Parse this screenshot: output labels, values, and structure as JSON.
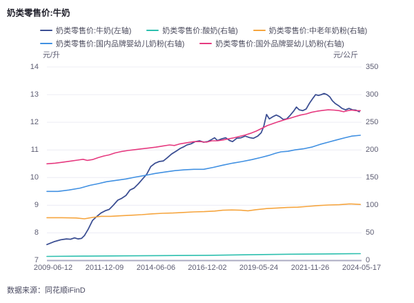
{
  "page": {
    "title": "奶类零售价:牛奶",
    "source": "数据来源：同花顺iFinD"
  },
  "chart_data": {
    "type": "line",
    "title": "奶类零售价:牛奶",
    "grid": true,
    "legend_position": "top-left",
    "x_range": [
      "2009-06-12",
      "2024-05-17"
    ],
    "x_tick_labels": [
      "2009-06-12",
      "2011-12-09",
      "2014-06-06",
      "2016-12-02",
      "2019-05-24",
      "2021-11-26",
      "2024-05-17"
    ],
    "left_axis": {
      "unit": "元/升",
      "min": 7,
      "max": 14,
      "ticks": [
        14,
        13,
        12,
        11,
        10,
        9,
        8,
        7
      ]
    },
    "right_axis": {
      "unit": "元/公斤",
      "min": 0,
      "max": 350,
      "ticks": [
        350,
        300,
        250,
        200,
        150,
        100,
        50,
        0
      ]
    },
    "legend_rows": [
      [
        0,
        1,
        2
      ],
      [
        3,
        4
      ]
    ],
    "series": [
      {
        "name": "奶类零售价:牛奶(左轴)",
        "axis": "left",
        "color": "#3c4f93",
        "points": [
          [
            0,
            7.58
          ],
          [
            0.022,
            7.68
          ],
          [
            0.044,
            7.75
          ],
          [
            0.062,
            7.78
          ],
          [
            0.075,
            7.77
          ],
          [
            0.088,
            7.82
          ],
          [
            0.099,
            7.78
          ],
          [
            0.11,
            7.8
          ],
          [
            0.119,
            7.9
          ],
          [
            0.132,
            8.15
          ],
          [
            0.145,
            8.45
          ],
          [
            0.159,
            8.6
          ],
          [
            0.172,
            8.72
          ],
          [
            0.185,
            8.8
          ],
          [
            0.198,
            8.85
          ],
          [
            0.211,
            9.0
          ],
          [
            0.225,
            9.18
          ],
          [
            0.238,
            9.25
          ],
          [
            0.251,
            9.35
          ],
          [
            0.264,
            9.55
          ],
          [
            0.277,
            9.62
          ],
          [
            0.291,
            9.78
          ],
          [
            0.304,
            9.95
          ],
          [
            0.317,
            10.12
          ],
          [
            0.33,
            10.4
          ],
          [
            0.344,
            10.52
          ],
          [
            0.357,
            10.58
          ],
          [
            0.37,
            10.6
          ],
          [
            0.383,
            10.72
          ],
          [
            0.396,
            10.85
          ],
          [
            0.41,
            10.95
          ],
          [
            0.423,
            11.05
          ],
          [
            0.436,
            11.12
          ],
          [
            0.445,
            11.18
          ],
          [
            0.458,
            11.22
          ],
          [
            0.471,
            11.3
          ],
          [
            0.485,
            11.33
          ],
          [
            0.498,
            11.28
          ],
          [
            0.511,
            11.3
          ],
          [
            0.524,
            11.38
          ],
          [
            0.533,
            11.44
          ],
          [
            0.542,
            11.34
          ],
          [
            0.555,
            11.4
          ],
          [
            0.568,
            11.44
          ],
          [
            0.581,
            11.34
          ],
          [
            0.59,
            11.3
          ],
          [
            0.603,
            11.42
          ],
          [
            0.617,
            11.44
          ],
          [
            0.63,
            11.5
          ],
          [
            0.643,
            11.45
          ],
          [
            0.656,
            11.42
          ],
          [
            0.67,
            11.5
          ],
          [
            0.681,
            11.62
          ],
          [
            0.689,
            11.85
          ],
          [
            0.698,
            12.28
          ],
          [
            0.707,
            12.12
          ],
          [
            0.718,
            12.2
          ],
          [
            0.729,
            12.26
          ],
          [
            0.74,
            12.2
          ],
          [
            0.751,
            12.1
          ],
          [
            0.762,
            12.12
          ],
          [
            0.773,
            12.25
          ],
          [
            0.784,
            12.4
          ],
          [
            0.793,
            12.55
          ],
          [
            0.802,
            12.45
          ],
          [
            0.813,
            12.42
          ],
          [
            0.824,
            12.48
          ],
          [
            0.835,
            12.7
          ],
          [
            0.846,
            12.88
          ],
          [
            0.854,
            13.0
          ],
          [
            0.863,
            12.97
          ],
          [
            0.872,
            13.0
          ],
          [
            0.881,
            13.04
          ],
          [
            0.89,
            13.0
          ],
          [
            0.899,
            12.92
          ],
          [
            0.907,
            12.78
          ],
          [
            0.916,
            12.68
          ],
          [
            0.927,
            12.6
          ],
          [
            0.938,
            12.5
          ],
          [
            0.949,
            12.45
          ],
          [
            0.96,
            12.5
          ],
          [
            0.971,
            12.45
          ],
          [
            0.982,
            12.44
          ],
          [
            0.993,
            12.38
          ]
        ]
      },
      {
        "name": "奶类零售价:酸奶(右轴)",
        "axis": "right",
        "color": "#2cbfae",
        "points": [
          [
            0,
            7.5
          ],
          [
            0.115,
            8
          ],
          [
            0.247,
            8.5
          ],
          [
            0.379,
            9
          ],
          [
            0.511,
            9.5
          ],
          [
            0.643,
            10.5
          ],
          [
            0.775,
            11.5
          ],
          [
            0.885,
            12
          ],
          [
            0.996,
            12.5
          ]
        ]
      },
      {
        "name": "奶类零售价:中老年奶粉(右轴)",
        "axis": "right",
        "color": "#f6a53e",
        "points": [
          [
            0,
            77.5
          ],
          [
            0.048,
            77.5
          ],
          [
            0.093,
            77
          ],
          [
            0.119,
            75.5
          ],
          [
            0.145,
            78
          ],
          [
            0.172,
            80
          ],
          [
            0.203,
            80
          ],
          [
            0.236,
            81
          ],
          [
            0.269,
            82
          ],
          [
            0.302,
            83
          ],
          [
            0.335,
            84.5
          ],
          [
            0.368,
            85.5
          ],
          [
            0.401,
            86
          ],
          [
            0.434,
            87
          ],
          [
            0.467,
            88
          ],
          [
            0.5,
            88.5
          ],
          [
            0.533,
            89.5
          ],
          [
            0.559,
            91
          ],
          [
            0.588,
            91.5
          ],
          [
            0.617,
            91
          ],
          [
            0.639,
            90
          ],
          [
            0.665,
            92
          ],
          [
            0.698,
            94
          ],
          [
            0.731,
            95
          ],
          [
            0.764,
            96
          ],
          [
            0.797,
            96.5
          ],
          [
            0.83,
            98
          ],
          [
            0.863,
            99.5
          ],
          [
            0.896,
            100.5
          ],
          [
            0.929,
            101
          ],
          [
            0.962,
            102.5
          ],
          [
            0.996,
            101.5
          ]
        ]
      },
      {
        "name": "奶类零售价:国内品牌婴幼儿奶粉(右轴)",
        "axis": "right",
        "color": "#4090e2",
        "points": [
          [
            0,
            125
          ],
          [
            0.035,
            125
          ],
          [
            0.07,
            127.5
          ],
          [
            0.106,
            131
          ],
          [
            0.137,
            136
          ],
          [
            0.163,
            139
          ],
          [
            0.189,
            142.5
          ],
          [
            0.22,
            145
          ],
          [
            0.251,
            147.5
          ],
          [
            0.282,
            151
          ],
          [
            0.313,
            154
          ],
          [
            0.344,
            157.5
          ],
          [
            0.374,
            160
          ],
          [
            0.405,
            162.5
          ],
          [
            0.436,
            164
          ],
          [
            0.467,
            165
          ],
          [
            0.498,
            165
          ],
          [
            0.529,
            168.5
          ],
          [
            0.559,
            172.5
          ],
          [
            0.59,
            176
          ],
          [
            0.621,
            179
          ],
          [
            0.652,
            182.5
          ],
          [
            0.678,
            186
          ],
          [
            0.705,
            190
          ],
          [
            0.727,
            194
          ],
          [
            0.744,
            196.5
          ],
          [
            0.766,
            197.5
          ],
          [
            0.788,
            200
          ],
          [
            0.815,
            202
          ],
          [
            0.841,
            205
          ],
          [
            0.868,
            210
          ],
          [
            0.894,
            214
          ],
          [
            0.92,
            218
          ],
          [
            0.947,
            222
          ],
          [
            0.969,
            225
          ],
          [
            0.996,
            226.5
          ]
        ]
      },
      {
        "name": "奶类零售价:国外品牌婴幼儿奶粉(右轴)",
        "axis": "right",
        "color": "#e6397f",
        "points": [
          [
            0,
            175
          ],
          [
            0.026,
            176
          ],
          [
            0.053,
            178
          ],
          [
            0.079,
            180
          ],
          [
            0.097,
            181.5
          ],
          [
            0.115,
            183
          ],
          [
            0.128,
            181
          ],
          [
            0.145,
            182.5
          ],
          [
            0.163,
            186
          ],
          [
            0.181,
            189
          ],
          [
            0.198,
            191
          ],
          [
            0.216,
            194.5
          ],
          [
            0.236,
            197
          ],
          [
            0.258,
            199
          ],
          [
            0.28,
            200.5
          ],
          [
            0.302,
            202
          ],
          [
            0.324,
            203.5
          ],
          [
            0.346,
            205
          ],
          [
            0.368,
            207
          ],
          [
            0.39,
            209
          ],
          [
            0.405,
            208
          ],
          [
            0.423,
            211
          ],
          [
            0.445,
            213
          ],
          [
            0.467,
            215
          ],
          [
            0.489,
            215
          ],
          [
            0.507,
            214
          ],
          [
            0.524,
            216.5
          ],
          [
            0.542,
            216.5
          ],
          [
            0.559,
            218
          ],
          [
            0.577,
            220
          ],
          [
            0.595,
            222
          ],
          [
            0.612,
            224.5
          ],
          [
            0.63,
            227
          ],
          [
            0.647,
            230
          ],
          [
            0.665,
            234
          ],
          [
            0.683,
            239
          ],
          [
            0.7,
            244
          ],
          [
            0.718,
            247.5
          ],
          [
            0.736,
            251
          ],
          [
            0.753,
            254
          ],
          [
            0.771,
            257
          ],
          [
            0.788,
            260
          ],
          [
            0.806,
            263
          ],
          [
            0.824,
            265
          ],
          [
            0.841,
            268
          ],
          [
            0.859,
            270
          ],
          [
            0.877,
            271.5
          ],
          [
            0.894,
            272.5
          ],
          [
            0.912,
            272
          ],
          [
            0.929,
            271
          ],
          [
            0.943,
            269
          ],
          [
            0.956,
            271
          ],
          [
            0.969,
            272
          ],
          [
            0.982,
            271
          ],
          [
            0.996,
            271
          ]
        ]
      }
    ]
  }
}
